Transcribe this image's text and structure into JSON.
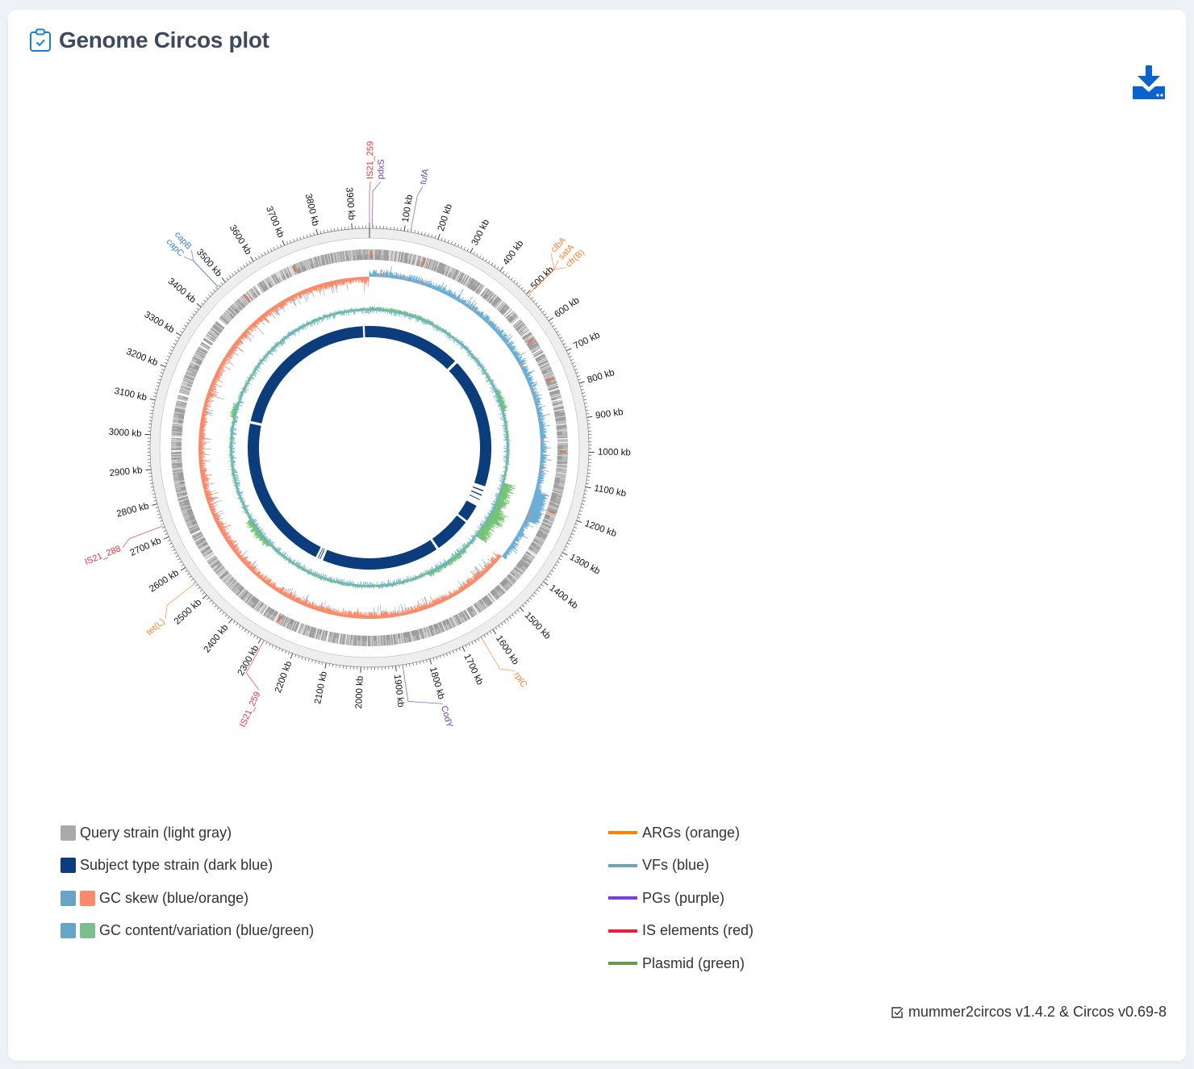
{
  "header": {
    "title": "Genome Circos plot",
    "title_icon": "clipboard-check-icon",
    "download_icon": "download-icon"
  },
  "colors": {
    "title": "#3d4a5e",
    "accent": "#0b63ce",
    "query": "#9e9e9e",
    "subject": "#0b3d7c",
    "skew_pos": "#6baed6",
    "skew_neg": "#fb8a6a",
    "gc_pos": "#6baed6",
    "gc_var": "#74c476",
    "arg": "#ff7f2a",
    "vf": "#3a80cc",
    "pg": "#6a44b8",
    "is": "#e0303f"
  },
  "plot": {
    "genome_kb": 3950,
    "ticks": [
      {
        "kb": 100,
        "label": "100 kb"
      },
      {
        "kb": 200,
        "label": "200 kb"
      },
      {
        "kb": 300,
        "label": "300 kb"
      },
      {
        "kb": 400,
        "label": "400 kb"
      },
      {
        "kb": 500,
        "label": "500 kb"
      },
      {
        "kb": 600,
        "label": "600 kb"
      },
      {
        "kb": 700,
        "label": "700 kb"
      },
      {
        "kb": 800,
        "label": "800 kb"
      },
      {
        "kb": 900,
        "label": "900 kb"
      },
      {
        "kb": 1000,
        "label": "1000 kb"
      },
      {
        "kb": 1100,
        "label": "1100 kb"
      },
      {
        "kb": 1200,
        "label": "1200 kb"
      },
      {
        "kb": 1300,
        "label": "1300 kb"
      },
      {
        "kb": 1400,
        "label": "1400 kb"
      },
      {
        "kb": 1500,
        "label": "1500 kb"
      },
      {
        "kb": 1600,
        "label": "1600 kb"
      },
      {
        "kb": 1700,
        "label": "1700 kb"
      },
      {
        "kb": 1800,
        "label": "1800 kb"
      },
      {
        "kb": 1900,
        "label": "1900 kb"
      },
      {
        "kb": 2000,
        "label": "2000 kb"
      },
      {
        "kb": 2100,
        "label": "2100 kb"
      },
      {
        "kb": 2200,
        "label": "2200 kb"
      },
      {
        "kb": 2300,
        "label": "2300 kb"
      },
      {
        "kb": 2400,
        "label": "2400 kb"
      },
      {
        "kb": 2500,
        "label": "2500 kb"
      },
      {
        "kb": 2600,
        "label": "2600 kb"
      },
      {
        "kb": 2700,
        "label": "2700 kb"
      },
      {
        "kb": 2800,
        "label": "2800 kb"
      },
      {
        "kb": 2900,
        "label": "2900 kb"
      },
      {
        "kb": 3000,
        "label": "3000 kb"
      },
      {
        "kb": 3100,
        "label": "3100 kb"
      },
      {
        "kb": 3200,
        "label": "3200 kb"
      },
      {
        "kb": 3300,
        "label": "3300 kb"
      },
      {
        "kb": 3400,
        "label": "3400 kb"
      },
      {
        "kb": 3500,
        "label": "3500 kb"
      },
      {
        "kb": 3600,
        "label": "3600 kb"
      },
      {
        "kb": 3700,
        "label": "3700 kb"
      },
      {
        "kb": 3800,
        "label": "3800 kb"
      },
      {
        "kb": 3900,
        "label": "3900 kb"
      }
    ],
    "features": [
      {
        "name": "IS21_259",
        "type": "is",
        "kb": 0
      },
      {
        "name": "pdxS",
        "type": "pg",
        "kb": 8
      },
      {
        "name": "tufA",
        "type": "pg",
        "kb": 118
      },
      {
        "name": "clbA",
        "type": "arg",
        "kb": 505
      },
      {
        "name": "satA",
        "type": "arg",
        "kb": 505
      },
      {
        "name": "cfr(B)",
        "type": "arg",
        "kb": 505
      },
      {
        "name": "rplC",
        "type": "arg",
        "kb": 1640
      },
      {
        "name": "CodY",
        "type": "pg",
        "kb": 1880
      },
      {
        "name": "IS21_259",
        "type": "is",
        "kb": 2290
      },
      {
        "name": "tet(L)",
        "type": "arg",
        "kb": 2547
      },
      {
        "name": "IS21_288",
        "type": "is",
        "kb": 2735
      },
      {
        "name": "capB",
        "type": "vf",
        "kb": 3475
      },
      {
        "name": "capC",
        "type": "vf",
        "kb": 3475
      }
    ],
    "subject_alignments_kb": [
      [
        0,
        490
      ],
      [
        505,
        1190
      ],
      [
        1212,
        1218
      ],
      [
        1236,
        1242
      ],
      [
        1262,
        1266
      ],
      [
        1300,
        1390
      ],
      [
        1402,
        1595
      ],
      [
        1608,
        2222
      ],
      [
        2236,
        2240
      ],
      [
        2246,
        2250
      ],
      [
        2262,
        3088
      ],
      [
        3102,
        3915
      ],
      [
        3925,
        3950
      ]
    ]
  },
  "legend": {
    "left": [
      {
        "label": "Query strain (light gray)",
        "swatches": [
          "#aaaaaa"
        ]
      },
      {
        "label": "Subject type strain (dark blue)",
        "swatches": [
          "#0b3d7c"
        ]
      },
      {
        "label": "GC skew (blue/orange)",
        "swatches": [
          "#66a5c6",
          "#fb8a6a"
        ]
      },
      {
        "label": "GC content/variation (blue/green)",
        "swatches": [
          "#66a5c6",
          "#7ac08f"
        ]
      }
    ],
    "right": [
      {
        "label": "ARGs (orange)",
        "color": "#ff8000"
      },
      {
        "label": "VFs (blue)",
        "color": "#66a5c6"
      },
      {
        "label": "PGs (purple)",
        "color": "#7c3aed"
      },
      {
        "label": "IS elements (red)",
        "color": "#e8203c"
      },
      {
        "label": "Plasmid (green)",
        "color": "#6a994e"
      }
    ]
  },
  "footer": {
    "text": "mummer2circos v1.4.2 & Circos v0.69-8",
    "icon": "checkbox-icon"
  }
}
